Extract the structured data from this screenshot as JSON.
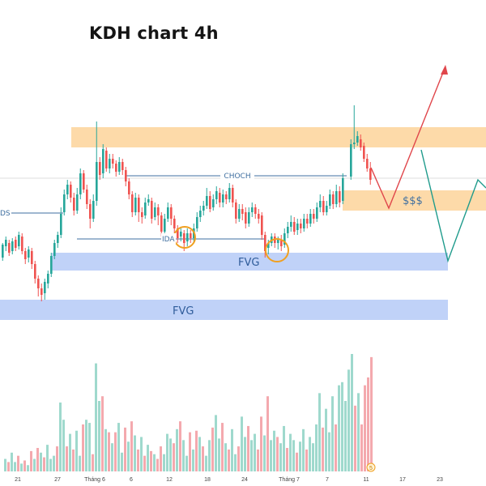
{
  "chart_data": {
    "type": "candlestick",
    "title": "KDH chart 4h",
    "colors": {
      "up": "#26a69a",
      "down": "#ef5350",
      "up_volume": "#9fd9cd",
      "down_volume": "#f4a9ae",
      "supply_zone": "#fdd39a",
      "fvg_zone": "#b9cdf7",
      "structure_line": "#3f6fa0",
      "bullish_path": "#e0464b",
      "bearish_path": "#1f9b8c",
      "marker_circle": "#f0a020"
    },
    "x_tick_labels": [
      "21",
      "27",
      "Tháng 6",
      "6",
      "12",
      "18",
      "24",
      "Tháng 7",
      "7",
      "11",
      "17",
      "23"
    ],
    "annotations": {
      "choch": "CHOCH",
      "dollars": "$$$",
      "fvg_upper": "FVG",
      "fvg_lower": "FVG",
      "ida": "IDA",
      "bos_partial": "DS",
      "badge": "5"
    },
    "volume_series": [
      {
        "x": 5,
        "v": 8,
        "up": true
      },
      {
        "x": 9,
        "v": 6,
        "up": false
      },
      {
        "x": 13,
        "v": 12,
        "up": true
      },
      {
        "x": 17,
        "v": 6,
        "up": true
      },
      {
        "x": 21,
        "v": 10,
        "up": false
      },
      {
        "x": 25,
        "v": 5,
        "up": true
      },
      {
        "x": 29,
        "v": 7,
        "up": false
      },
      {
        "x": 33,
        "v": 4,
        "up": true
      },
      {
        "x": 37,
        "v": 13,
        "up": false
      },
      {
        "x": 41,
        "v": 8,
        "up": true
      },
      {
        "x": 45,
        "v": 15,
        "up": false
      },
      {
        "x": 49,
        "v": 12,
        "up": true
      },
      {
        "x": 53,
        "v": 9,
        "up": false
      },
      {
        "x": 57,
        "v": 17,
        "up": true
      },
      {
        "x": 61,
        "v": 8,
        "up": true
      },
      {
        "x": 65,
        "v": 10,
        "up": true
      },
      {
        "x": 69,
        "v": 16,
        "up": false
      },
      {
        "x": 73,
        "v": 44,
        "up": true
      },
      {
        "x": 77,
        "v": 33,
        "up": true
      },
      {
        "x": 81,
        "v": 16,
        "up": false
      },
      {
        "x": 85,
        "v": 24,
        "up": true
      },
      {
        "x": 89,
        "v": 14,
        "up": false
      },
      {
        "x": 93,
        "v": 26,
        "up": true
      },
      {
        "x": 97,
        "v": 10,
        "up": true
      },
      {
        "x": 101,
        "v": 30,
        "up": false
      },
      {
        "x": 105,
        "v": 33,
        "up": true
      },
      {
        "x": 109,
        "v": 31,
        "up": true
      },
      {
        "x": 113,
        "v": 11,
        "up": false
      },
      {
        "x": 117,
        "v": 69,
        "up": true
      },
      {
        "x": 121,
        "v": 45,
        "up": true
      },
      {
        "x": 125,
        "v": 48,
        "up": false
      },
      {
        "x": 129,
        "v": 27,
        "up": true
      },
      {
        "x": 133,
        "v": 25,
        "up": false
      },
      {
        "x": 137,
        "v": 18,
        "up": true
      },
      {
        "x": 141,
        "v": 25,
        "up": false
      },
      {
        "x": 145,
        "v": 31,
        "up": true
      },
      {
        "x": 149,
        "v": 12,
        "up": true
      },
      {
        "x": 153,
        "v": 28,
        "up": false
      },
      {
        "x": 157,
        "v": 19,
        "up": true
      },
      {
        "x": 161,
        "v": 32,
        "up": false
      },
      {
        "x": 165,
        "v": 23,
        "up": true
      },
      {
        "x": 169,
        "v": 14,
        "up": false
      },
      {
        "x": 173,
        "v": 22,
        "up": true
      },
      {
        "x": 177,
        "v": 10,
        "up": false
      },
      {
        "x": 181,
        "v": 17,
        "up": true
      },
      {
        "x": 185,
        "v": 13,
        "up": false
      },
      {
        "x": 189,
        "v": 11,
        "up": true
      },
      {
        "x": 193,
        "v": 8,
        "up": false
      },
      {
        "x": 197,
        "v": 16,
        "up": false
      },
      {
        "x": 201,
        "v": 11,
        "up": true
      },
      {
        "x": 205,
        "v": 24,
        "up": true
      },
      {
        "x": 209,
        "v": 21,
        "up": true
      },
      {
        "x": 213,
        "v": 18,
        "up": false
      },
      {
        "x": 217,
        "v": 27,
        "up": true
      },
      {
        "x": 221,
        "v": 32,
        "up": false
      },
      {
        "x": 225,
        "v": 20,
        "up": true
      },
      {
        "x": 229,
        "v": 10,
        "up": true
      },
      {
        "x": 233,
        "v": 25,
        "up": false
      },
      {
        "x": 237,
        "v": 14,
        "up": true
      },
      {
        "x": 241,
        "v": 26,
        "up": false
      },
      {
        "x": 245,
        "v": 22,
        "up": true
      },
      {
        "x": 249,
        "v": 16,
        "up": false
      },
      {
        "x": 253,
        "v": 10,
        "up": true
      },
      {
        "x": 257,
        "v": 20,
        "up": true
      },
      {
        "x": 261,
        "v": 28,
        "up": false
      },
      {
        "x": 265,
        "v": 36,
        "up": true
      },
      {
        "x": 269,
        "v": 21,
        "up": true
      },
      {
        "x": 273,
        "v": 31,
        "up": false
      },
      {
        "x": 277,
        "v": 18,
        "up": true
      },
      {
        "x": 281,
        "v": 14,
        "up": false
      },
      {
        "x": 285,
        "v": 27,
        "up": true
      },
      {
        "x": 289,
        "v": 11,
        "up": true
      },
      {
        "x": 293,
        "v": 16,
        "up": false
      },
      {
        "x": 297,
        "v": 35,
        "up": true
      },
      {
        "x": 301,
        "v": 22,
        "up": true
      },
      {
        "x": 305,
        "v": 29,
        "up": false
      },
      {
        "x": 309,
        "v": 20,
        "up": true
      },
      {
        "x": 313,
        "v": 24,
        "up": true
      },
      {
        "x": 317,
        "v": 14,
        "up": false
      },
      {
        "x": 321,
        "v": 35,
        "up": false
      },
      {
        "x": 325,
        "v": 23,
        "up": true
      },
      {
        "x": 329,
        "v": 48,
        "up": false
      },
      {
        "x": 333,
        "v": 20,
        "up": true
      },
      {
        "x": 337,
        "v": 26,
        "up": true
      },
      {
        "x": 341,
        "v": 22,
        "up": false
      },
      {
        "x": 345,
        "v": 18,
        "up": true
      },
      {
        "x": 349,
        "v": 29,
        "up": true
      },
      {
        "x": 353,
        "v": 15,
        "up": false
      },
      {
        "x": 357,
        "v": 24,
        "up": true
      },
      {
        "x": 361,
        "v": 20,
        "up": true
      },
      {
        "x": 365,
        "v": 12,
        "up": false
      },
      {
        "x": 369,
        "v": 19,
        "up": true
      },
      {
        "x": 373,
        "v": 27,
        "up": true
      },
      {
        "x": 377,
        "v": 14,
        "up": false
      },
      {
        "x": 381,
        "v": 22,
        "up": true
      },
      {
        "x": 385,
        "v": 18,
        "up": true
      },
      {
        "x": 389,
        "v": 30,
        "up": true
      },
      {
        "x": 393,
        "v": 50,
        "up": true
      },
      {
        "x": 397,
        "v": 28,
        "up": false
      },
      {
        "x": 401,
        "v": 40,
        "up": true
      },
      {
        "x": 405,
        "v": 25,
        "up": true
      },
      {
        "x": 409,
        "v": 48,
        "up": true
      },
      {
        "x": 413,
        "v": 30,
        "up": false
      },
      {
        "x": 417,
        "v": 55,
        "up": true
      },
      {
        "x": 421,
        "v": 57,
        "up": true
      },
      {
        "x": 425,
        "v": 45,
        "up": true
      },
      {
        "x": 429,
        "v": 65,
        "up": true
      },
      {
        "x": 433,
        "v": 75,
        "up": true
      },
      {
        "x": 437,
        "v": 42,
        "up": false
      },
      {
        "x": 441,
        "v": 50,
        "up": true
      },
      {
        "x": 445,
        "v": 30,
        "up": false
      },
      {
        "x": 449,
        "v": 55,
        "up": false
      },
      {
        "x": 453,
        "v": 60,
        "up": false
      },
      {
        "x": 457,
        "v": 73,
        "up": false
      }
    ]
  }
}
